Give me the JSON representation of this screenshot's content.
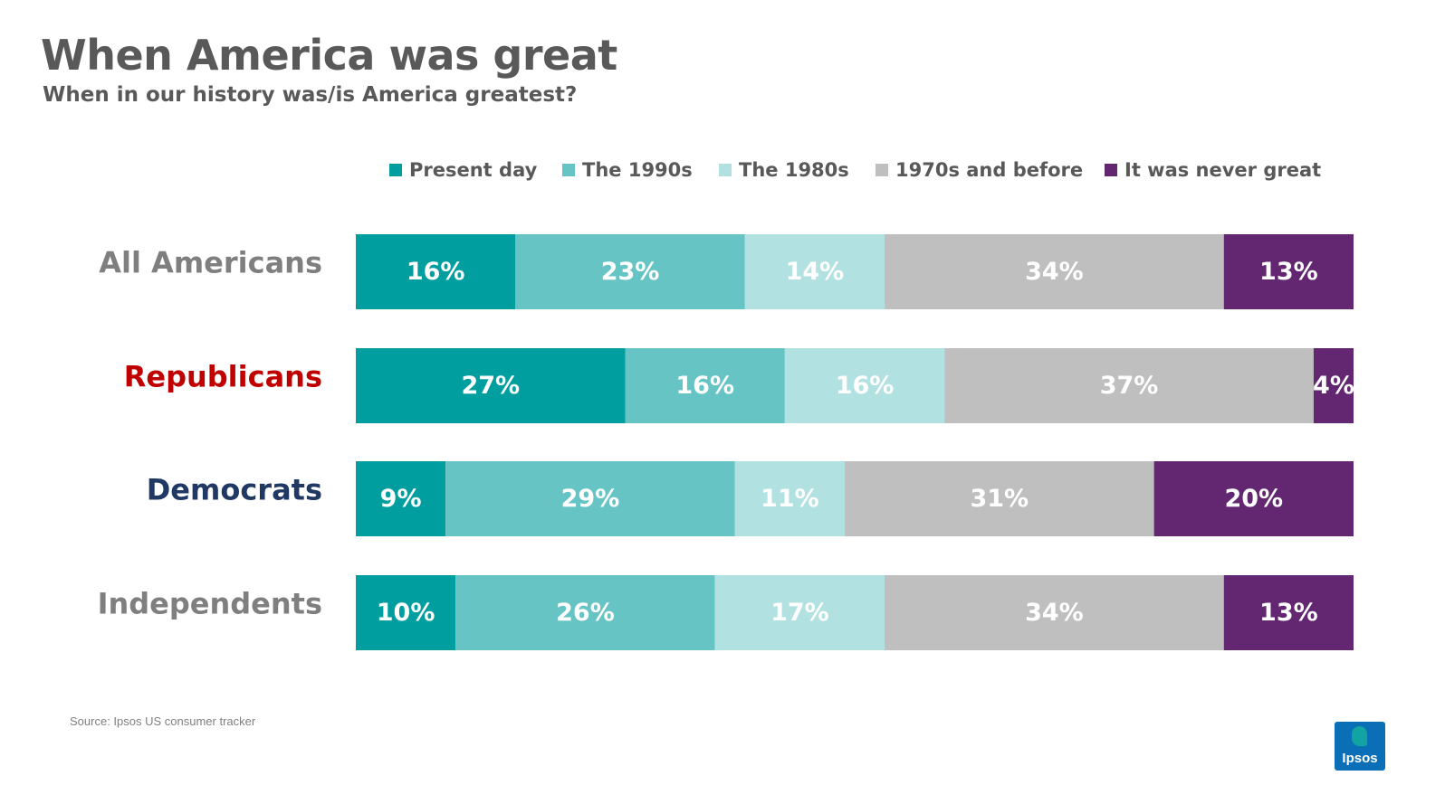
{
  "header": {
    "title": "When America was great",
    "subtitle": "When in our history was/is America greatest?"
  },
  "footer": {
    "source": "Source: Ipsos US consumer  tracker"
  },
  "logo": {
    "text": "Ipsos",
    "color": "#0b6fb8",
    "accent": "#12a3a3"
  },
  "chart_data": {
    "type": "bar",
    "orientation": "horizontal",
    "stacked": true,
    "title": "When America was great",
    "subtitle": "When in our history was/is America greatest?",
    "categories": [
      "All Americans",
      "Republicans",
      "Democrats",
      "Independents"
    ],
    "category_colors": [
      "#7f7f7f",
      "#c00000",
      "#1f3864",
      "#7f7f7f"
    ],
    "series": [
      {
        "name": "Present day",
        "color": "#009e9e",
        "label_color": "#ffffff",
        "values": [
          16,
          27,
          9,
          10
        ]
      },
      {
        "name": "The 1990s",
        "color": "#67c4c4",
        "label_color": "#ffffff",
        "values": [
          23,
          16,
          29,
          26
        ]
      },
      {
        "name": "The 1980s",
        "color": "#b2e1e1",
        "label_color": "#ffffff",
        "values": [
          14,
          16,
          11,
          17
        ]
      },
      {
        "name": "1970s and before",
        "color": "#bfbfbf",
        "label_color": "#ffffff",
        "values": [
          34,
          37,
          31,
          34
        ]
      },
      {
        "name": "It was never great",
        "color": "#622770",
        "label_color": "#ffffff",
        "values": [
          13,
          4,
          20,
          13
        ]
      }
    ],
    "value_suffix": "%",
    "xlim": [
      0,
      100
    ],
    "grid": false,
    "legend_position": "top"
  }
}
